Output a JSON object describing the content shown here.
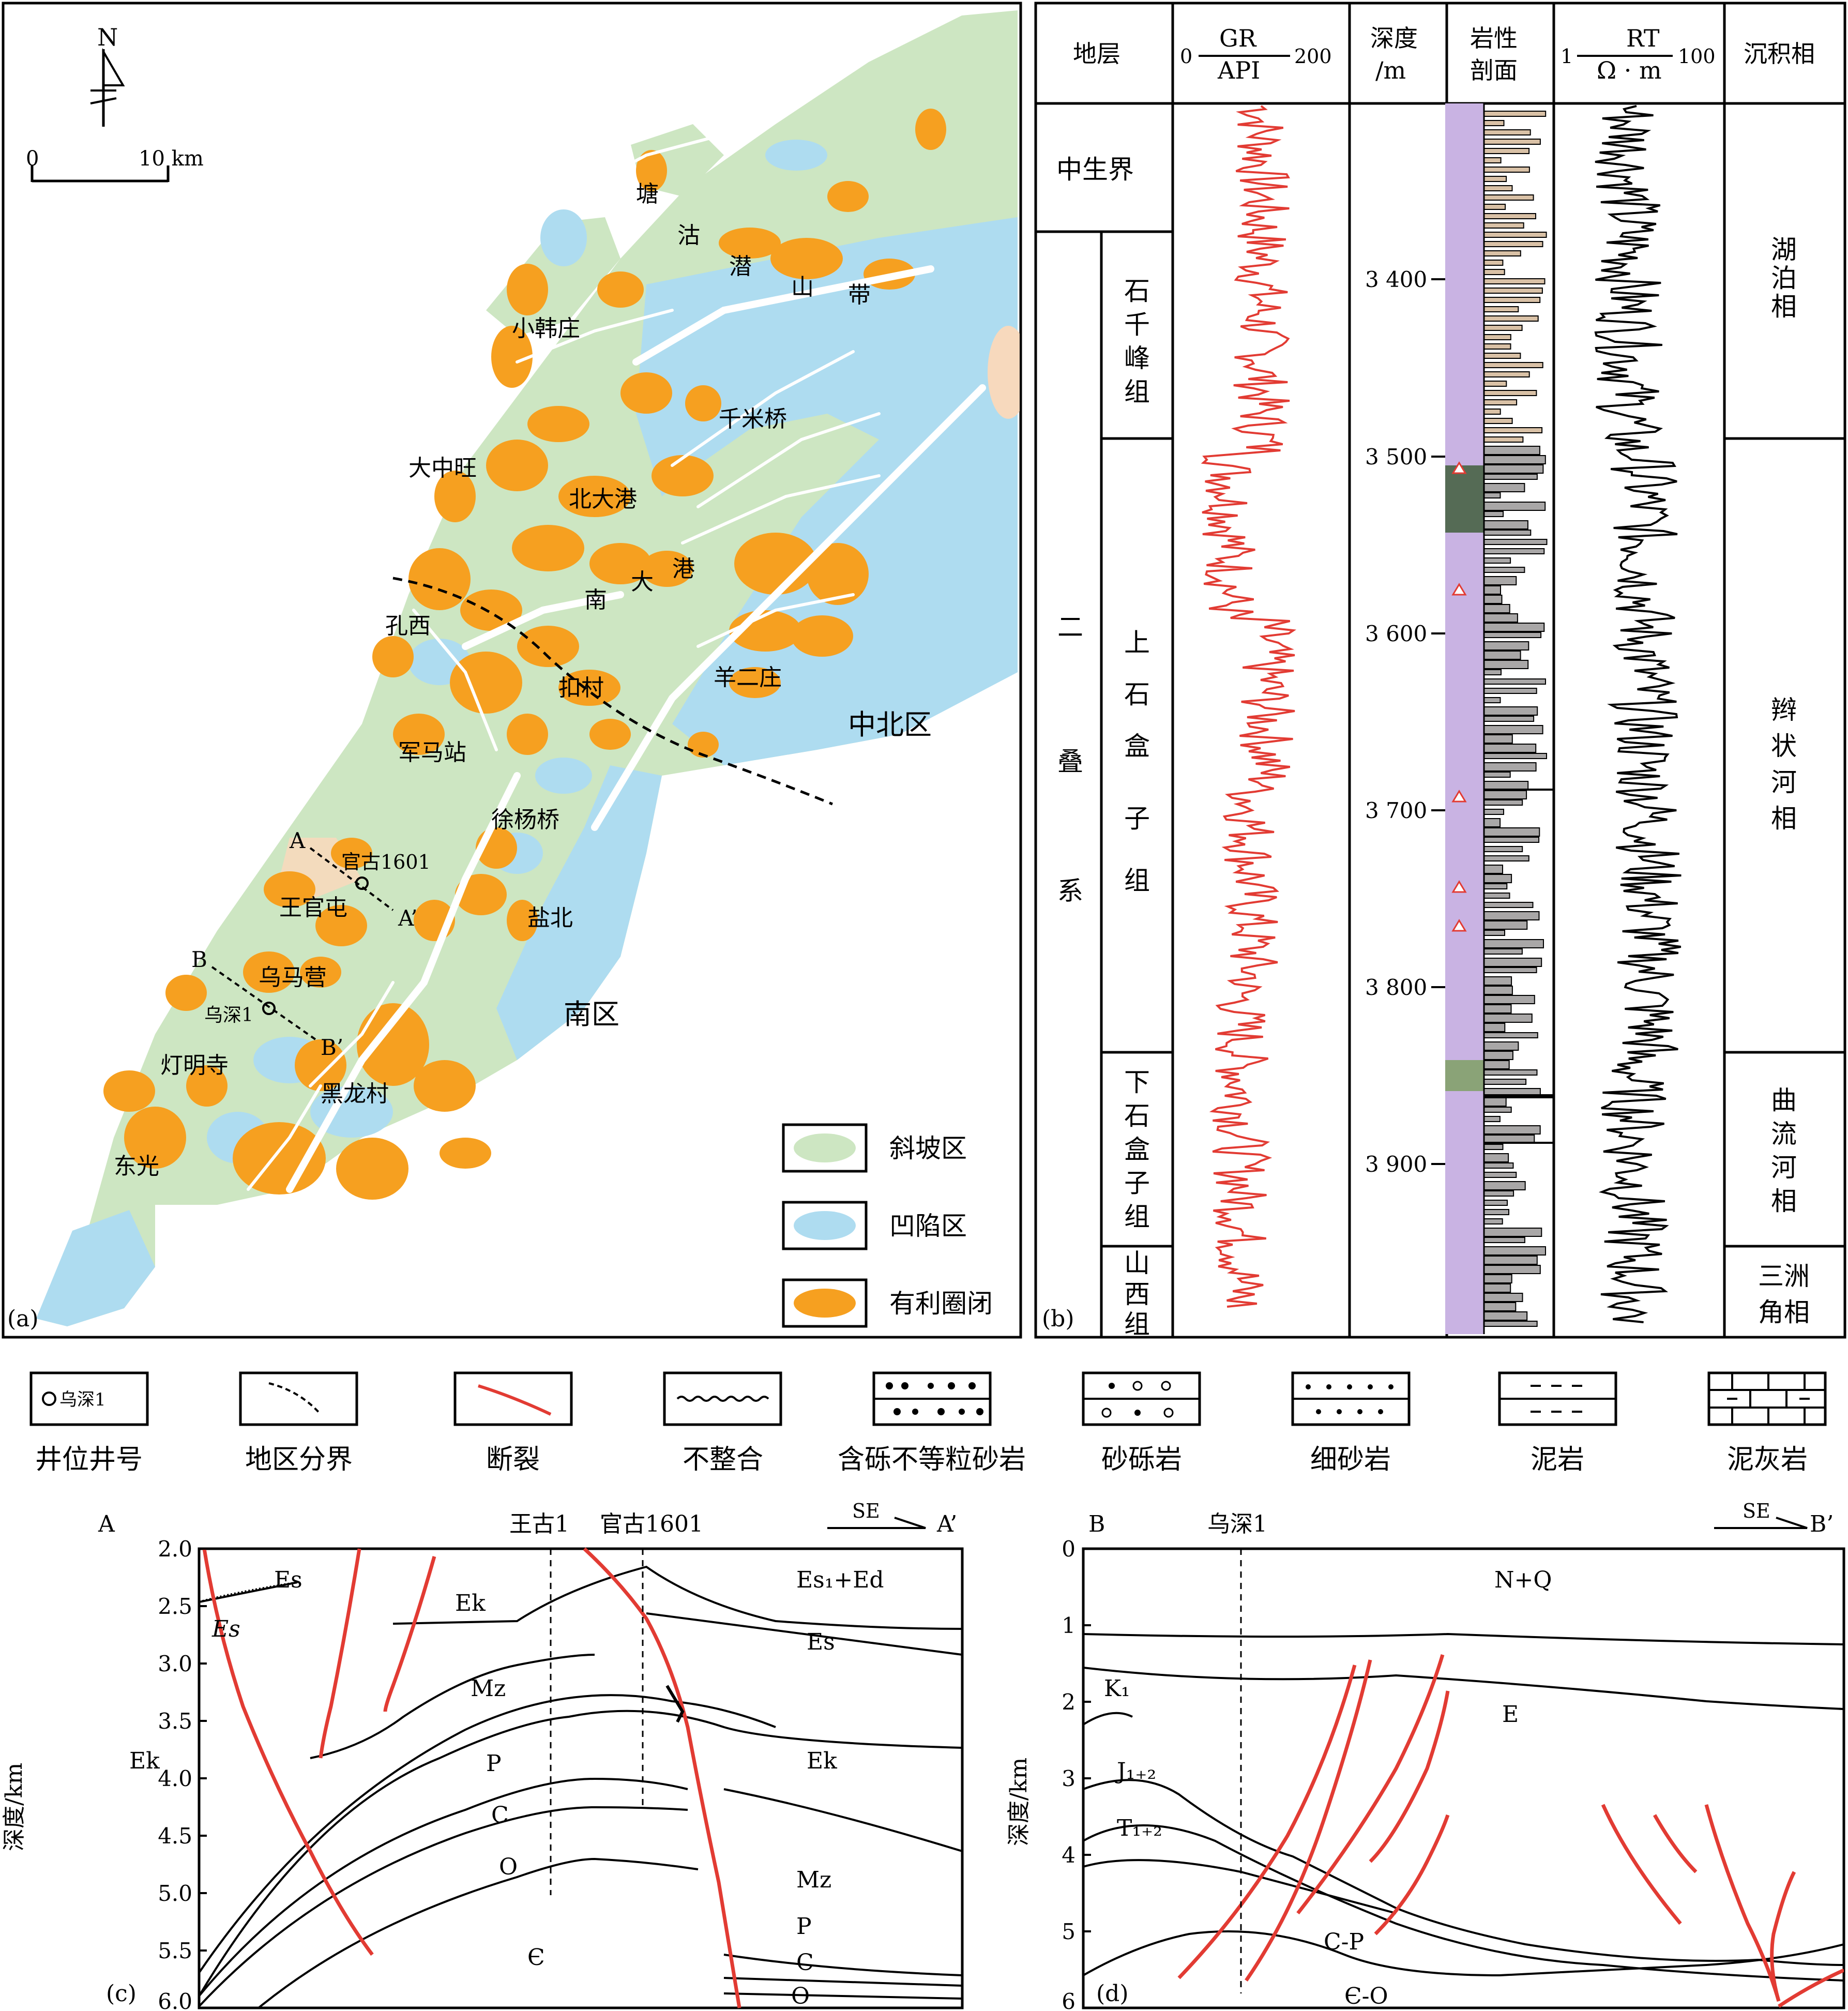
{
  "colors": {
    "slope": "#cde6c2",
    "depression": "#aedcf0",
    "trap": "#f6a020",
    "fault": "#e23b33",
    "peach": "#f7d9bd",
    "mud": "#c9b3e3",
    "sand": "#a9a7a7",
    "tan": "#d9c1a6"
  },
  "panel_a": {
    "label": "(a)",
    "north": "N",
    "scale_zero": "0",
    "scale_text": "10 km",
    "places": [
      "塘",
      "沽",
      "潜",
      "山",
      "带",
      "小韩庄",
      "千米桥",
      "大中旺",
      "北大港",
      "南",
      "大",
      "港",
      "孔西",
      "扣村",
      "羊二庄",
      "中北区",
      "军马站",
      "徐杨桥",
      "官古1601",
      "王官屯",
      "盐北",
      "乌马营",
      "乌深1",
      "南区",
      "灯明寺",
      "黑龙村",
      "东光"
    ],
    "section_labels": [
      "A",
      "A’",
      "B",
      "B’"
    ],
    "legend": [
      {
        "label": "斜坡区",
        "icon": "green-swatch"
      },
      {
        "label": "凹陷区",
        "icon": "blue-swatch"
      },
      {
        "label": "有利圈闭",
        "icon": "orange-swatch"
      }
    ]
  },
  "panel_b": {
    "label": "(b)",
    "headers": {
      "strata": "地层",
      "gr_name": "GR",
      "gr_unit": "API",
      "gr_min": "0",
      "gr_max": "200",
      "depth_1": "深度",
      "depth_2": "/m",
      "litho_1": "岩性",
      "litho_2": "剖面",
      "rt_name": "RT",
      "rt_unit": "Ω · m",
      "rt_min": "1",
      "rt_max": "100",
      "facies": "沉积相"
    },
    "erathem": "中生界",
    "system": [
      "二",
      "叠",
      "系"
    ],
    "formations": [
      {
        "name": "石千峰组",
        "chars": [
          "石",
          "千",
          "峰",
          "组"
        ]
      },
      {
        "name": "上石盒子组",
        "chars": [
          "上",
          "石",
          "盒",
          "子",
          "组"
        ]
      },
      {
        "name": "下石盒子组",
        "chars": [
          "下",
          "石",
          "盒",
          "子",
          "组"
        ]
      },
      {
        "name": "山西组",
        "chars": [
          "山",
          "西",
          "组"
        ]
      }
    ],
    "depth_ticks": [
      "3 400",
      "3 500",
      "3 600",
      "3 700",
      "3 800",
      "3 900"
    ],
    "facies": [
      {
        "name": "湖泊相",
        "chars": [
          "湖",
          "泊",
          "相"
        ]
      },
      {
        "name": "辫状河相",
        "chars": [
          "辫",
          "状",
          "河",
          "相"
        ]
      },
      {
        "name": "曲流河相",
        "chars": [
          "曲",
          "流",
          "河",
          "相"
        ]
      },
      {
        "name": "三洲角相",
        "chars": [
          "三洲",
          "角相"
        ]
      }
    ]
  },
  "legend_row": [
    {
      "label": "井位井号",
      "icon": "well-icon",
      "sample": "乌深1"
    },
    {
      "label": "地区分界",
      "icon": "boundary-dash-icon"
    },
    {
      "label": "断裂",
      "icon": "fault-line-icon"
    },
    {
      "label": "不整合",
      "icon": "unconformity-icon"
    },
    {
      "label": "含砾不等粒砂岩",
      "icon": "pebbly-sandstone-icon"
    },
    {
      "label": "砂砾岩",
      "icon": "conglomerate-icon"
    },
    {
      "label": "细砂岩",
      "icon": "fine-sandstone-icon"
    },
    {
      "label": "泥岩",
      "icon": "mudstone-icon"
    },
    {
      "label": "泥灰岩",
      "icon": "marl-icon"
    }
  ],
  "panel_c": {
    "label": "(c)",
    "start": "A",
    "end": "A’",
    "direction": "SE",
    "ylabel": "深度/km",
    "yticks": [
      "2.0",
      "2.5",
      "3.0",
      "3.5",
      "4.0",
      "4.5",
      "5.0",
      "5.5",
      "6.0"
    ],
    "wells": [
      "王古1",
      "官古1601"
    ],
    "units": [
      "Es",
      "Es",
      "Ek",
      "Es₁+Ed",
      "Es",
      "Mz",
      "Ek",
      "P",
      "Ek",
      "C",
      "O",
      "Mz",
      "Є",
      "P",
      "C",
      "O"
    ]
  },
  "panel_d": {
    "label": "(d)",
    "start": "B",
    "end": "B’",
    "direction": "SE",
    "ylabel": "深度/km",
    "yticks": [
      "0",
      "1",
      "2",
      "3",
      "4",
      "5",
      "6"
    ],
    "well": "乌深1",
    "units": [
      "N+Q",
      "K₁",
      "E",
      "J₁₊₂",
      "T₁₊₂",
      "C-P",
      "Є-O"
    ]
  }
}
